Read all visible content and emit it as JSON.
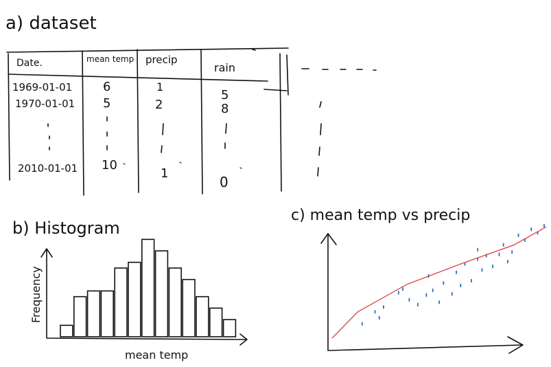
{
  "dataset": {
    "label": "a) dataset",
    "headers": [
      "Date.",
      "mean temp",
      "precip",
      "rain"
    ],
    "rows": [
      [
        "1969-01-01",
        "6",
        "1",
        "5"
      ],
      [
        "1970-01-01",
        "5",
        "2",
        "8"
      ],
      [
        "2010-01-01",
        "10",
        "1",
        "0"
      ]
    ]
  },
  "histogram": {
    "label": "b) Histogram",
    "xlabel": "mean temp",
    "ylabel": "Frequency"
  },
  "scatter": {
    "label": "c) mean temp vs precip"
  },
  "chart_data": [
    {
      "type": "bar",
      "title": "b) Histogram",
      "xlabel": "mean temp",
      "ylabel": "Frequency",
      "values": [
        2,
        7,
        8,
        8,
        12,
        13,
        17,
        15,
        12,
        10,
        7,
        5,
        3
      ],
      "ylim": [
        0,
        18
      ]
    },
    {
      "type": "scatter",
      "title": "c) mean temp vs precip",
      "points": [
        [
          0.22,
          0.17
        ],
        [
          0.2,
          0.22
        ],
        [
          0.24,
          0.26
        ],
        [
          0.31,
          0.38
        ],
        [
          0.33,
          0.41
        ],
        [
          0.36,
          0.32
        ],
        [
          0.4,
          0.28
        ],
        [
          0.44,
          0.36
        ],
        [
          0.47,
          0.4
        ],
        [
          0.52,
          0.46
        ],
        [
          0.56,
          0.37
        ],
        [
          0.58,
          0.55
        ],
        [
          0.62,
          0.62
        ],
        [
          0.65,
          0.48
        ],
        [
          0.68,
          0.66
        ],
        [
          0.7,
          0.57
        ],
        [
          0.72,
          0.69
        ],
        [
          0.75,
          0.6
        ],
        [
          0.78,
          0.7
        ],
        [
          0.8,
          0.78
        ],
        [
          0.84,
          0.72
        ],
        [
          0.87,
          0.86
        ],
        [
          0.9,
          0.82
        ],
        [
          0.93,
          0.91
        ],
        [
          0.96,
          0.88
        ],
        [
          0.99,
          0.94
        ],
        [
          0.5,
          0.3
        ],
        [
          0.6,
          0.44
        ],
        [
          0.82,
          0.64
        ],
        [
          0.14,
          0.12
        ],
        [
          0.45,
          0.52
        ],
        [
          0.68,
          0.74
        ]
      ],
      "trend": [
        [
          0.0,
          0.0
        ],
        [
          0.12,
          0.22
        ],
        [
          0.35,
          0.45
        ],
        [
          0.6,
          0.62
        ],
        [
          0.85,
          0.78
        ],
        [
          1.0,
          0.93
        ]
      ],
      "xlim": [
        0,
        1
      ],
      "ylim": [
        0,
        1
      ]
    }
  ]
}
